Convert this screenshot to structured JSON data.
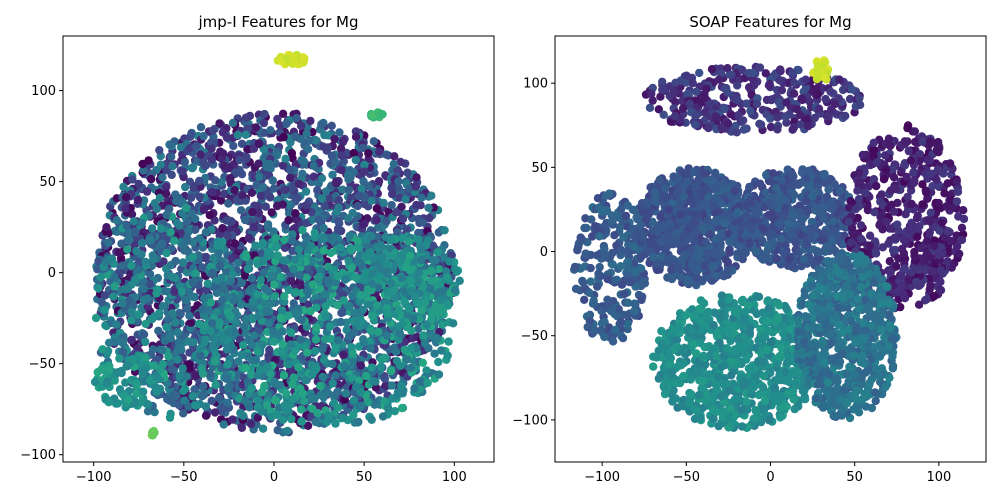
{
  "chart_data": [
    {
      "type": "scatter",
      "title": "jmp-I Features for Mg",
      "xlabel": "",
      "ylabel": "",
      "xlim": [
        -117,
        122
      ],
      "ylim": [
        -104,
        130
      ],
      "xticks": [
        -100,
        -50,
        0,
        50,
        100
      ],
      "xtick_labels": [
        "−100",
        "−50",
        "0",
        "50",
        "100"
      ],
      "yticks": [
        -100,
        -50,
        0,
        50,
        100
      ],
      "ytick_labels": [
        "−100",
        "−50",
        "0",
        "50",
        "100"
      ],
      "grid": false,
      "colormap": "viridis",
      "colormap_stops": [
        "#440154",
        "#472d7b",
        "#3b528b",
        "#2c728e",
        "#21918c",
        "#28ae80",
        "#5ec962",
        "#addc30",
        "#fde725"
      ],
      "clusters": [
        {
          "cx": 0,
          "cy": 0,
          "rx": 100,
          "ry": 88,
          "n": 2600,
          "c": [
            0.0,
            0.45
          ]
        },
        {
          "cx": 30,
          "cy": -30,
          "rx": 70,
          "ry": 55,
          "n": 700,
          "c": [
            0.35,
            0.6
          ]
        },
        {
          "cx": -60,
          "cy": -20,
          "rx": 40,
          "ry": 60,
          "n": 300,
          "c": [
            0.3,
            0.55
          ]
        },
        {
          "cx": -80,
          "cy": -60,
          "rx": 20,
          "ry": 15,
          "n": 90,
          "c": [
            0.45,
            0.6
          ]
        },
        {
          "cx": 75,
          "cy": -5,
          "rx": 30,
          "ry": 25,
          "n": 200,
          "c": [
            0.4,
            0.58
          ]
        },
        {
          "cx": 10,
          "cy": 117,
          "rx": 8,
          "ry": 3,
          "n": 40,
          "c": [
            0.9,
            0.95
          ]
        },
        {
          "cx": 57,
          "cy": 86,
          "rx": 4,
          "ry": 3,
          "n": 10,
          "c": [
            0.65,
            0.7
          ]
        },
        {
          "cx": -68,
          "cy": -88,
          "rx": 2,
          "ry": 2,
          "n": 5,
          "c": [
            0.75,
            0.8
          ]
        }
      ]
    },
    {
      "type": "scatter",
      "title": "SOAP Features for Mg",
      "xlabel": "",
      "ylabel": "",
      "xlim": [
        -128,
        128
      ],
      "ylim": [
        -125,
        128
      ],
      "xticks": [
        -100,
        -50,
        0,
        50,
        100
      ],
      "xtick_labels": [
        "−100",
        "−50",
        "0",
        "50",
        "100"
      ],
      "yticks": [
        -100,
        -50,
        0,
        50,
        100
      ],
      "ytick_labels": [
        "−100",
        "−50",
        "0",
        "50",
        "100"
      ],
      "grid": false,
      "colormap": "viridis",
      "colormap_stops": [
        "#440154",
        "#472d7b",
        "#3b528b",
        "#2c728e",
        "#21918c",
        "#28ae80",
        "#5ec962",
        "#addc30",
        "#fde725"
      ],
      "clusters": [
        {
          "cx": -45,
          "cy": 15,
          "rx": 35,
          "ry": 35,
          "n": 700,
          "c": [
            0.2,
            0.32
          ]
        },
        {
          "cx": 15,
          "cy": 20,
          "rx": 35,
          "ry": 30,
          "n": 500,
          "c": [
            0.2,
            0.32
          ]
        },
        {
          "cx": 80,
          "cy": 20,
          "rx": 35,
          "ry": 55,
          "n": 550,
          "c": [
            0.02,
            0.18
          ]
        },
        {
          "cx": -10,
          "cy": 90,
          "rx": 65,
          "ry": 20,
          "n": 350,
          "c": [
            0.05,
            0.25
          ]
        },
        {
          "cx": -20,
          "cy": -65,
          "rx": 50,
          "ry": 40,
          "n": 800,
          "c": [
            0.42,
            0.55
          ]
        },
        {
          "cx": 45,
          "cy": -50,
          "rx": 30,
          "ry": 50,
          "n": 700,
          "c": [
            0.3,
            0.45
          ]
        },
        {
          "cx": -95,
          "cy": -10,
          "rx": 22,
          "ry": 45,
          "n": 250,
          "c": [
            0.22,
            0.35
          ]
        },
        {
          "cx": 30,
          "cy": 107,
          "rx": 5,
          "ry": 7,
          "n": 30,
          "c": [
            0.9,
            0.95
          ]
        }
      ]
    }
  ]
}
